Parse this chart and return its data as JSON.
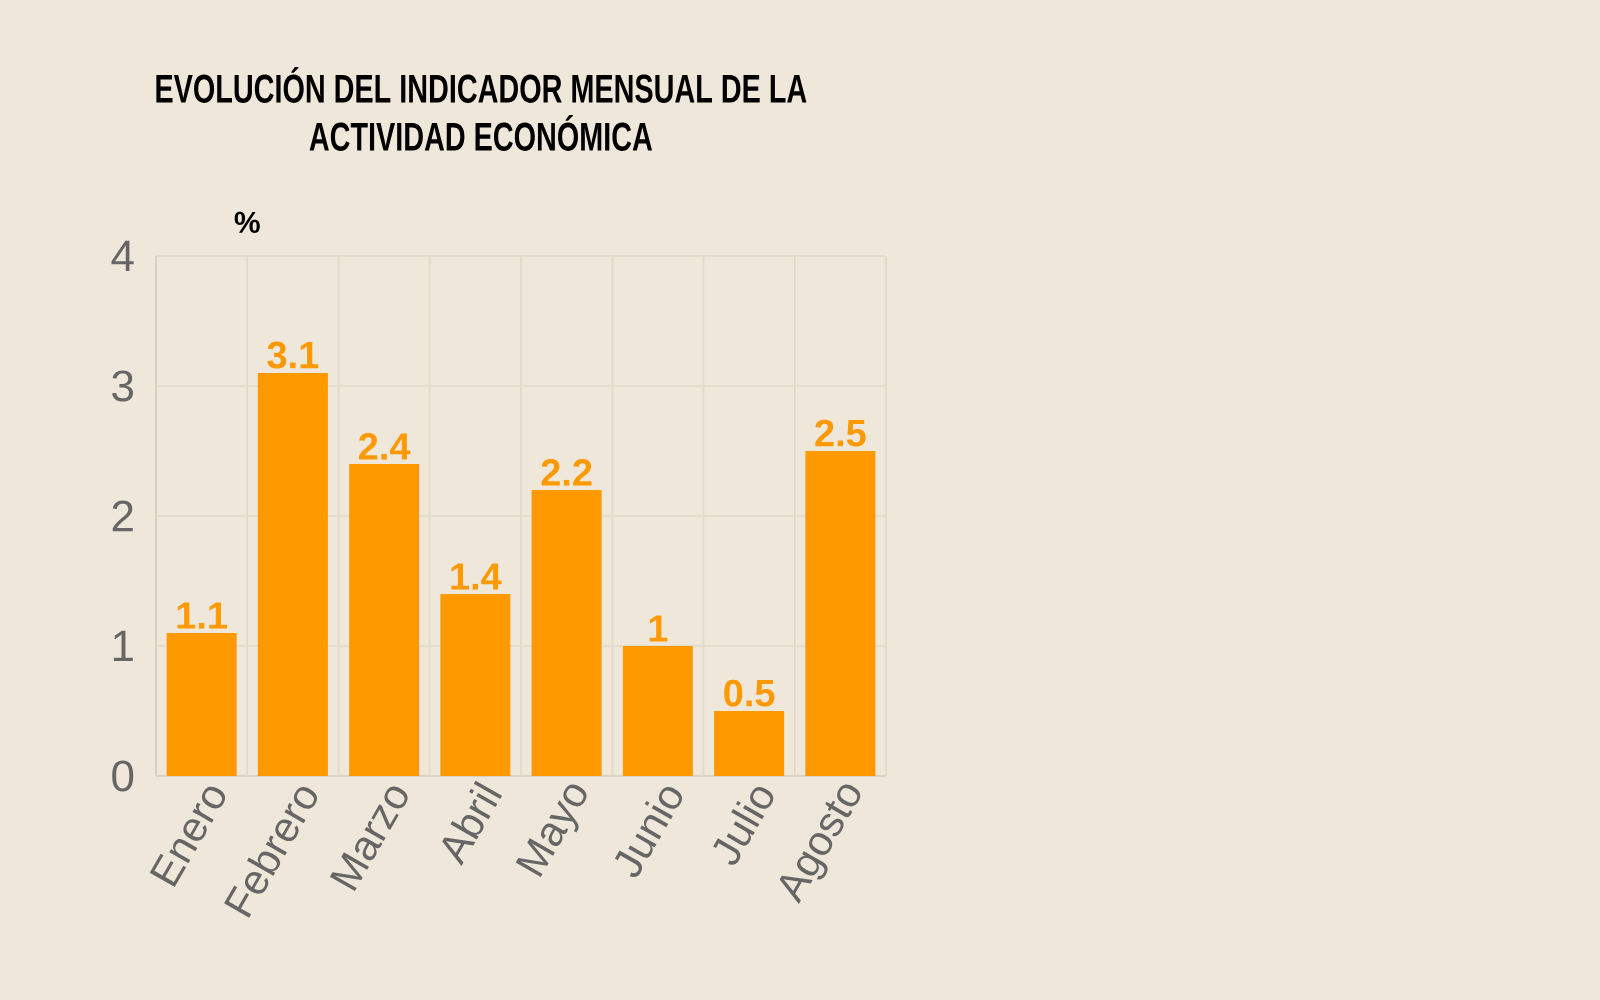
{
  "chart_data": {
    "type": "bar",
    "title": "EVOLUCIÓN DEL INDICADOR MENSUAL DE LA ACTIVIDAD ECONÓMICA",
    "ylabel": "%",
    "categories": [
      "Enero",
      "Febrero",
      "Marzo",
      "Abril",
      "Mayo",
      "Junio",
      "Julio",
      "Agosto"
    ],
    "values": [
      1.1,
      3.1,
      2.4,
      1.4,
      2.2,
      1,
      0.5,
      2.5
    ],
    "color": "#fe9900",
    "ylim": [
      0,
      4
    ],
    "yticks": [
      0,
      1,
      2,
      3,
      4
    ],
    "grid": true,
    "data_labels": true
  }
}
